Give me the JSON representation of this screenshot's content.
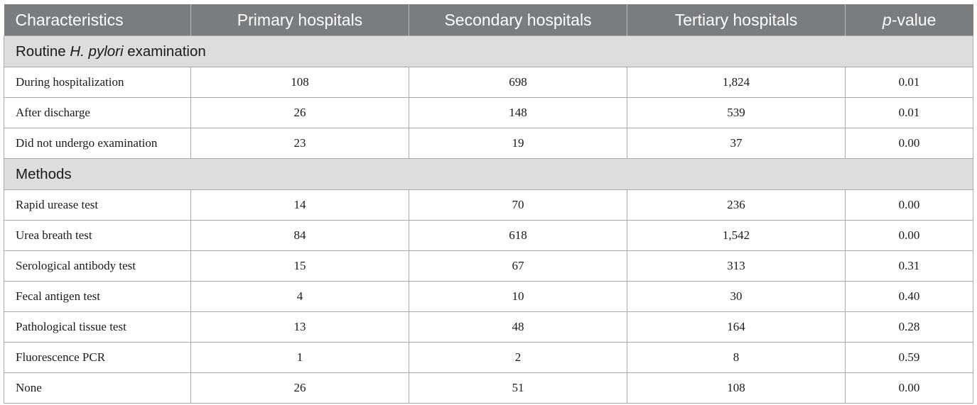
{
  "header": {
    "characteristics": "Characteristics",
    "primary": "Primary hospitals",
    "secondary": "Secondary hospitals",
    "tertiary": "Tertiary hospitals",
    "pvalue_italic": "p",
    "pvalue_rest": "-value"
  },
  "sections": [
    {
      "title_prefix": "Routine ",
      "title_italic": "H. pylori",
      "title_suffix": " examination",
      "rows": [
        {
          "label": "During hospitalization",
          "primary": "108",
          "secondary": "698",
          "tertiary": "1,824",
          "p": "0.01"
        },
        {
          "label": "After discharge",
          "primary": "26",
          "secondary": "148",
          "tertiary": "539",
          "p": "0.01"
        },
        {
          "label": "Did not undergo examination",
          "primary": "23",
          "secondary": "19",
          "tertiary": "37",
          "p": "0.00"
        }
      ]
    },
    {
      "title_prefix": "Methods",
      "title_italic": "",
      "title_suffix": "",
      "rows": [
        {
          "label": "Rapid urease test",
          "primary": "14",
          "secondary": "70",
          "tertiary": "236",
          "p": "0.00"
        },
        {
          "label": "Urea breath test",
          "primary": "84",
          "secondary": "618",
          "tertiary": "1,542",
          "p": "0.00"
        },
        {
          "label": "Serological antibody test",
          "primary": "15",
          "secondary": "67",
          "tertiary": "313",
          "p": "0.31"
        },
        {
          "label": "Fecal antigen test",
          "primary": "4",
          "secondary": "10",
          "tertiary": "30",
          "p": "0.40"
        },
        {
          "label": "Pathological tissue test",
          "primary": "13",
          "secondary": "48",
          "tertiary": "164",
          "p": "0.28"
        },
        {
          "label": "Fluorescence PCR",
          "primary": "1",
          "secondary": "2",
          "tertiary": "8",
          "p": "0.59"
        },
        {
          "label": "None",
          "primary": "26",
          "secondary": "51",
          "tertiary": "108",
          "p": "0.00"
        }
      ]
    }
  ],
  "colors": {
    "header_bg": "#7a7d80",
    "section_bg": "#dcdddd",
    "border": "#a7a9ab"
  }
}
